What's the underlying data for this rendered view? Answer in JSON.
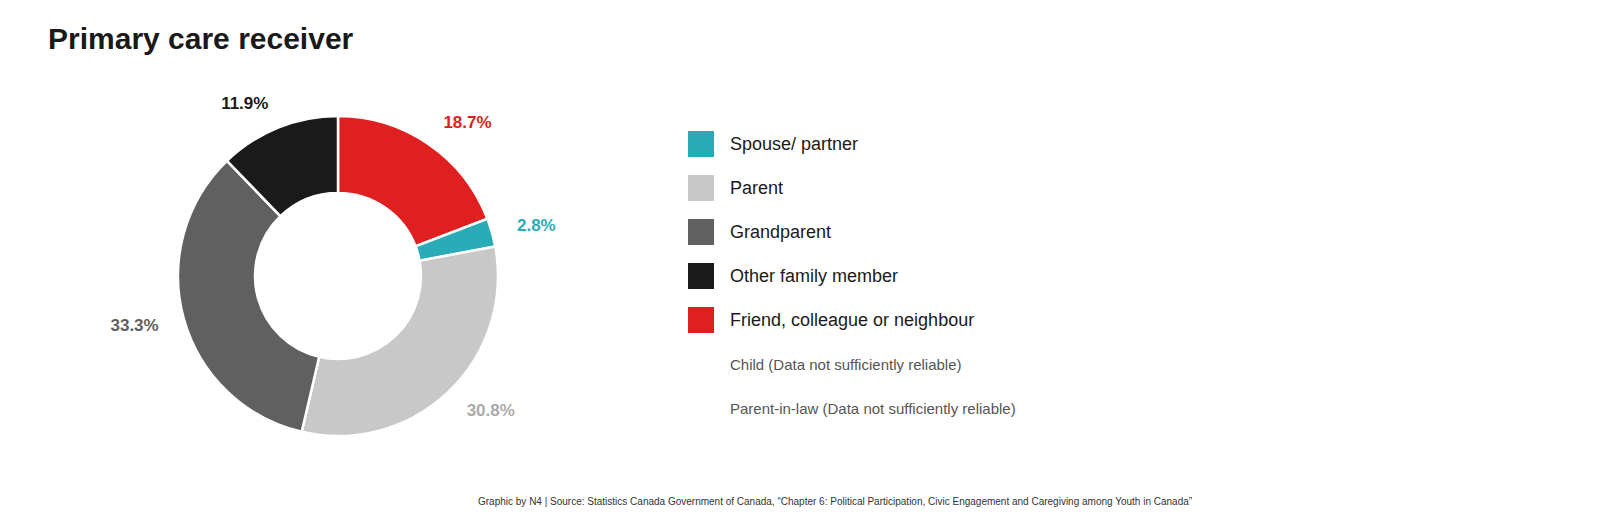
{
  "chart_data": {
    "type": "donut",
    "title": "Primary care receiver",
    "categories": [
      "Friend, colleague or neighbour",
      "Spouse/ partner",
      "Parent",
      "Grandparent",
      "Other family member"
    ],
    "values": [
      18.7,
      2.8,
      30.8,
      33.3,
      11.9
    ],
    "value_labels": [
      "18.7%",
      "2.8%",
      "30.8%",
      "33.3%",
      "11.9%"
    ],
    "colors": [
      "#E02020",
      "#2AACB8",
      "#C8C8C8",
      "#606060",
      "#1A1A1A"
    ],
    "label_colors": [
      "#E02020",
      "#2AACB8",
      "#AAAAAA",
      "#606060",
      "#1A1A1A"
    ],
    "data_labels": true,
    "legend": "right",
    "legend_entries": [
      {
        "name": "Spouse/ partner",
        "color": "#2AACB8"
      },
      {
        "name": "Parent",
        "color": "#C8C8C8"
      },
      {
        "name": "Grandparent",
        "color": "#606060"
      },
      {
        "name": "Other family member",
        "color": "#1A1A1A"
      },
      {
        "name": "Friend, colleague or neighbour",
        "color": "#E02020"
      },
      {
        "name": "Child (Data not sufficiently reliable)",
        "color": null
      },
      {
        "name": "Parent-in-law (Data not sufficiently reliable)",
        "color": null
      }
    ],
    "annotations": [
      "Graphic by N4 | Source: Statistics Canada Government of Canada, “Chapter 6: Political Participation, Civic Engagement and Caregiving among Youth in Canada”"
    ]
  }
}
